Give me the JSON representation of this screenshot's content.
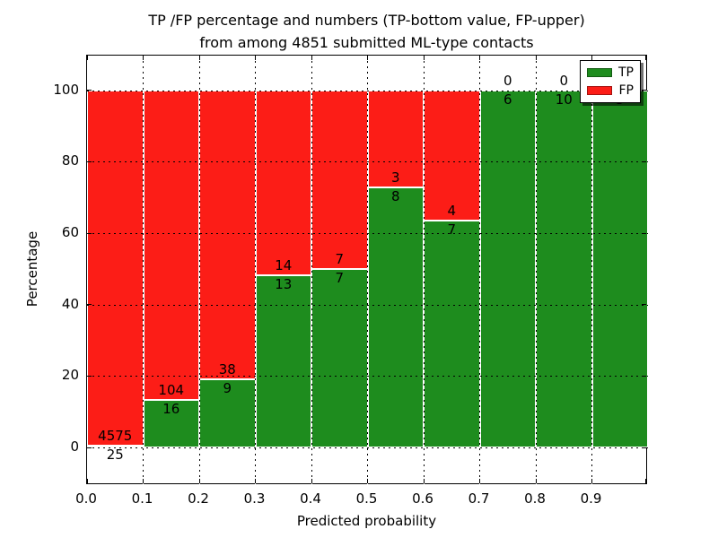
{
  "title": {
    "line1": "TP /FP percentage and numbers (TP-bottom value, FP-upper)",
    "line2": "from among 4851 submitted ML-type contacts"
  },
  "axes": {
    "xlabel": "Predicted probability",
    "ylabel": "Percentage"
  },
  "colors": {
    "tp_green": "#1e8c1e",
    "fp_red": "#fc1d17",
    "background": "#ffffff",
    "grid": "#000000"
  },
  "chart_data": {
    "type": "bar",
    "stacked": true,
    "title": "TP /FP percentage and numbers (TP-bottom value, FP-upper) from among 4851 submitted ML-type contacts",
    "xlabel": "Predicted probability",
    "ylabel": "Percentage",
    "total_submitted_contacts": 4851,
    "x_tick_labels": [
      "0.0",
      "0.1",
      "0.2",
      "0.3",
      "0.4",
      "0.5",
      "0.6",
      "0.7",
      "0.8",
      "0.9"
    ],
    "y_ticks": [
      0,
      20,
      40,
      60,
      80,
      100
    ],
    "xlim": [
      0.0,
      1.0
    ],
    "ylim": [
      -11,
      110
    ],
    "grid": "dotted",
    "legend_position": "upper right",
    "categories": [
      "0.0-0.1",
      "0.1-0.2",
      "0.2-0.3",
      "0.3-0.4",
      "0.4-0.5",
      "0.5-0.6",
      "0.6-0.7",
      "0.7-0.8",
      "0.8-0.9",
      "0.9-1.0"
    ],
    "series": [
      {
        "name": "TP",
        "color": "#1e8c1e",
        "counts": [
          25,
          16,
          9,
          13,
          7,
          8,
          7,
          6,
          10,
          5
        ],
        "pct": [
          0.54,
          13.33,
          19.15,
          48.15,
          50.0,
          72.73,
          63.64,
          100.0,
          100.0,
          100.0
        ]
      },
      {
        "name": "FP",
        "color": "#fc1d17",
        "counts": [
          4575,
          104,
          38,
          14,
          7,
          3,
          4,
          0,
          0,
          0
        ],
        "pct": [
          99.46,
          86.67,
          80.85,
          51.85,
          50.0,
          27.27,
          36.36,
          0.0,
          0.0,
          0.0
        ]
      }
    ],
    "annotation_rule": "TP count below TP/FP boundary, FP count above boundary"
  }
}
